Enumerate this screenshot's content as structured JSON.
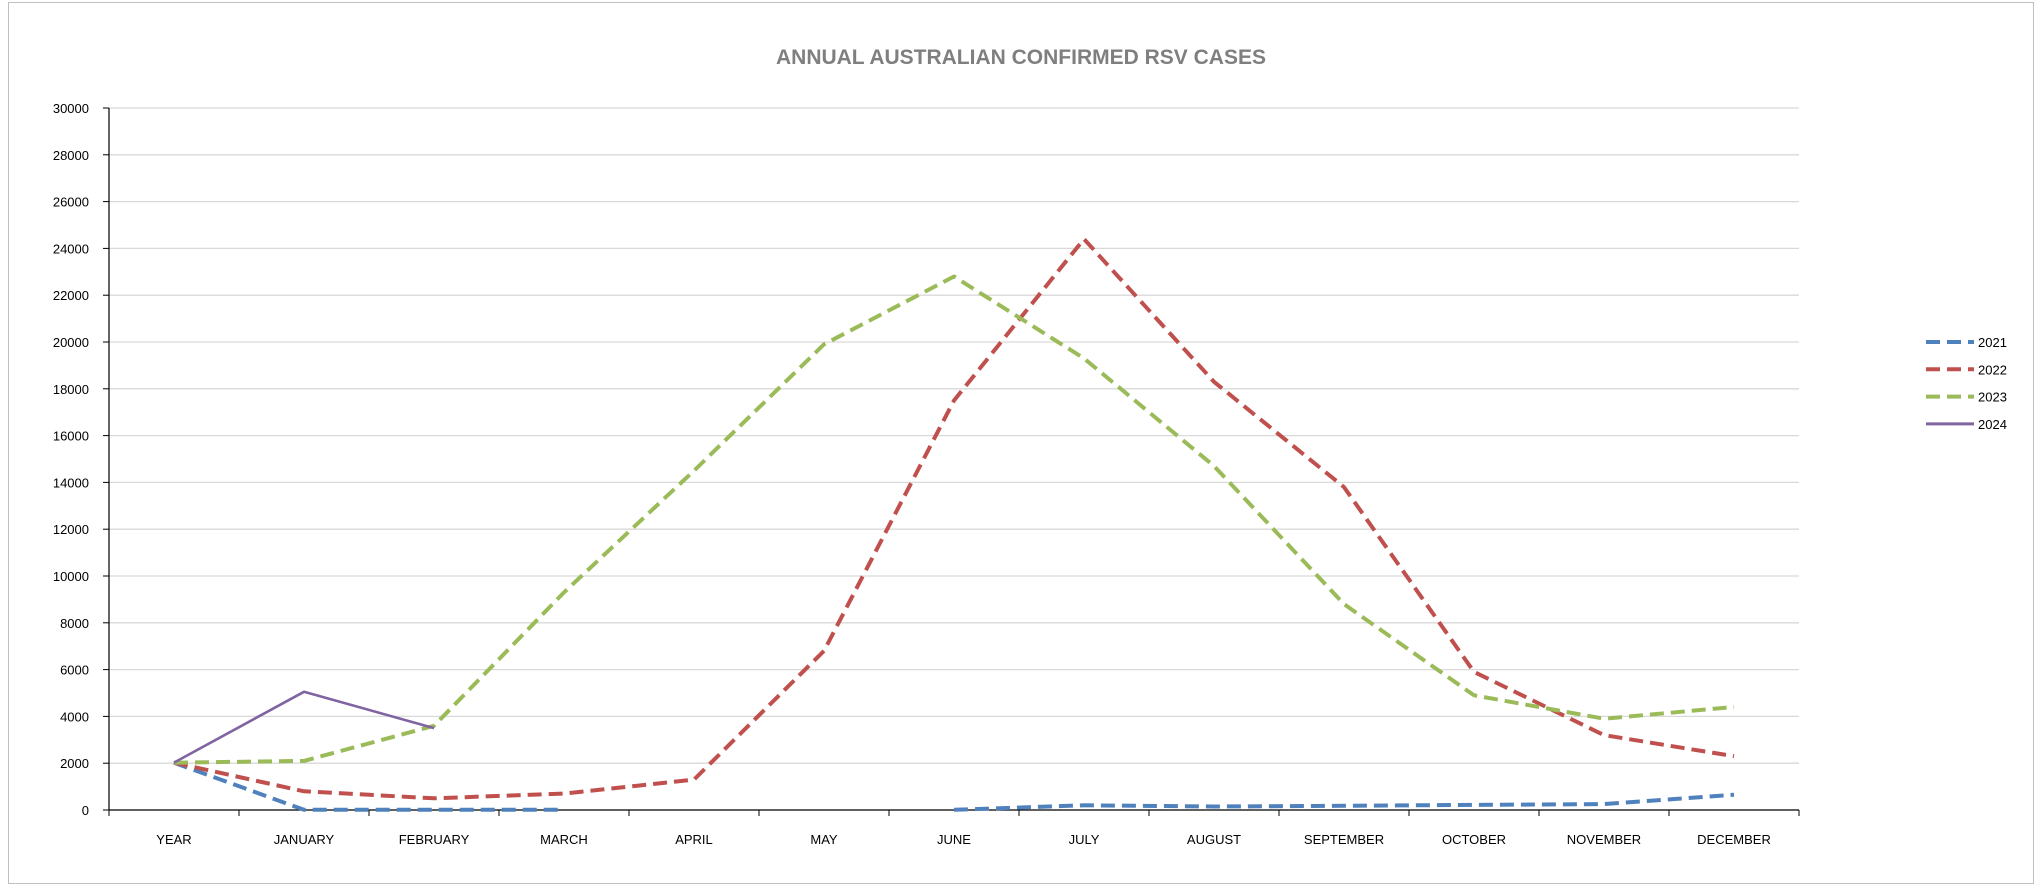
{
  "chart_data": {
    "type": "line",
    "title": "ANNUAL AUSTRALIAN CONFIRMED RSV CASES",
    "xlabel": "",
    "ylabel": "",
    "categories": [
      "YEAR",
      "JANUARY",
      "FEBRUARY",
      "MARCH",
      "APRIL",
      "MAY",
      "JUNE",
      "JULY",
      "AUGUST",
      "SEPTEMBER",
      "OCTOBER",
      "NOVEMBER",
      "DECEMBER"
    ],
    "ylim": [
      0,
      30000
    ],
    "yticks": [
      0,
      2000,
      4000,
      6000,
      8000,
      10000,
      12000,
      14000,
      16000,
      18000,
      20000,
      22000,
      24000,
      26000,
      28000,
      30000
    ],
    "grid": true,
    "legend_position": "right",
    "series": [
      {
        "name": "2021",
        "color": "#4f81bd",
        "dash": "dashed",
        "values": [
          2021,
          10,
          10,
          10,
          null,
          null,
          10,
          200,
          150,
          180,
          220,
          250,
          650
        ]
      },
      {
        "name": "2022",
        "color": "#c0504d",
        "dash": "dashed",
        "values": [
          2022,
          800,
          500,
          700,
          1300,
          6800,
          17500,
          24400,
          18300,
          13800,
          5900,
          3200,
          2300
        ]
      },
      {
        "name": "2023",
        "color": "#9bbb59",
        "dash": "dashed",
        "values": [
          2023,
          2100,
          3600,
          9300,
          14500,
          19900,
          22800,
          19300,
          14700,
          8800,
          4900,
          3900,
          4400
        ]
      },
      {
        "name": "2024",
        "color": "#8064a2",
        "dash": "solid",
        "values": [
          2024,
          5050,
          3500,
          null,
          null,
          null,
          null,
          null,
          null,
          null,
          null,
          null,
          null
        ]
      }
    ]
  }
}
